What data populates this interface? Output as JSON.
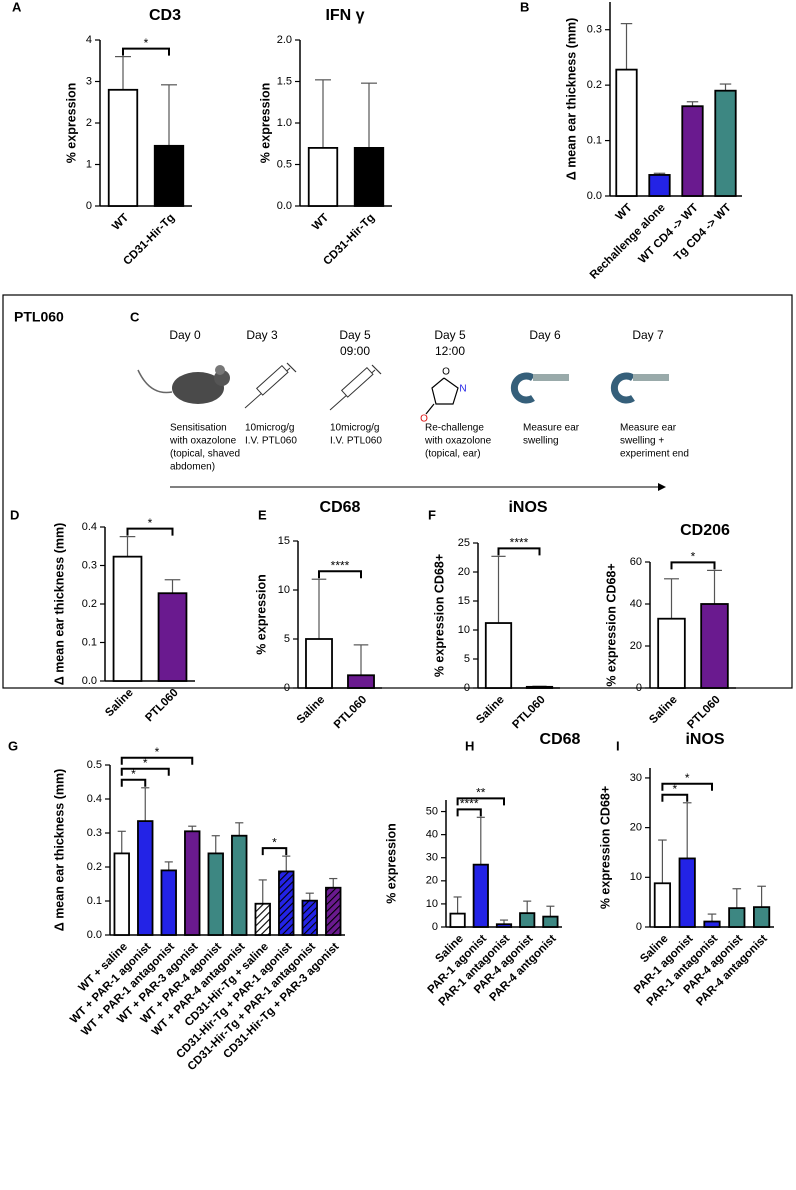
{
  "chart_data": [
    {
      "type": "bar",
      "panel": "A",
      "title": "CD3",
      "ylabel": "% expression",
      "categories": [
        "WT",
        "CD31-Hir-Tg"
      ],
      "values": [
        2.8,
        1.45
      ],
      "errors": [
        0.8,
        1.47
      ],
      "colors": [
        "#ffffff",
        "#000000"
      ],
      "ylim": [
        0,
        4
      ],
      "yticks": [
        0,
        1,
        2,
        3,
        4
      ],
      "significance": [
        {
          "from": 0,
          "to": 1,
          "label": "*"
        }
      ]
    },
    {
      "type": "bar",
      "title": "IFN γ",
      "ylabel": "% expression",
      "categories": [
        "WT",
        "CD31-Hir-Tg"
      ],
      "values": [
        0.7,
        0.7
      ],
      "errors": [
        0.82,
        0.78
      ],
      "colors": [
        "#ffffff",
        "#000000"
      ],
      "ylim": [
        0,
        2
      ],
      "yticks": [
        {
          "value": 0,
          "label": "0.0"
        },
        0.5,
        {
          "value": 1,
          "label": "1.0"
        },
        1.5,
        {
          "value": 2,
          "label": "2.0"
        }
      ]
    },
    {
      "type": "bar",
      "panel": "B",
      "ylabel": "Δ mean ear thickness (mm)",
      "categories": [
        "WT",
        "Rechallenge alone",
        "WT CD4 -> WT",
        "Tg CD4 -> WT"
      ],
      "values": [
        0.228,
        0.038,
        0.162,
        0.19
      ],
      "errors": [
        0.083,
        0.003,
        0.008,
        0.012
      ],
      "colors": [
        "#ffffff",
        "#2323e6",
        "#6a1a8f",
        "#3d8782"
      ],
      "ylim": [
        0,
        0.35
      ],
      "yticks": [
        {
          "value": 0,
          "label": "0.0"
        },
        0.1,
        0.2,
        0.3
      ]
    },
    {
      "type": "bar",
      "panel": "D",
      "ylabel": "Δ mean ear thickness (mm)",
      "categories": [
        "Saline",
        "PTL060"
      ],
      "values": [
        0.323,
        0.228
      ],
      "errors": [
        0.052,
        0.035
      ],
      "colors": [
        "#ffffff",
        "#6a1a8f"
      ],
      "ylim": [
        0,
        0.4
      ],
      "yticks": [
        {
          "value": 0,
          "label": "0.0"
        },
        0.1,
        0.2,
        0.3,
        0.4
      ],
      "significance": [
        {
          "from": 0,
          "to": 1,
          "label": "*"
        }
      ]
    },
    {
      "type": "bar",
      "panel": "E",
      "title": "CD68",
      "ylabel": "% expression",
      "categories": [
        "Saline",
        "PTL060"
      ],
      "values": [
        5.0,
        1.3
      ],
      "errors": [
        6.1,
        3.1
      ],
      "colors": [
        "#ffffff",
        "#6a1a8f"
      ],
      "ylim": [
        0,
        15
      ],
      "yticks": [
        0,
        5,
        10,
        15
      ],
      "significance": [
        {
          "from": 0,
          "to": 1,
          "label": "****"
        }
      ]
    },
    {
      "type": "bar",
      "panel": "F",
      "title": "iNOS",
      "ylabel": "% expression CD68+",
      "categories": [
        "Saline",
        "PTL060"
      ],
      "values": [
        11.2,
        0.2
      ],
      "errors": [
        11.5,
        0.1
      ],
      "colors": [
        "#ffffff",
        "#6a1a8f"
      ],
      "ylim": [
        0,
        25
      ],
      "yticks": [
        0,
        5,
        10,
        15,
        20,
        25
      ],
      "significance": [
        {
          "from": 0,
          "to": 1,
          "label": "****"
        }
      ]
    },
    {
      "type": "bar",
      "title": "CD206",
      "ylabel": "% expression CD68+",
      "categories": [
        "Saline",
        "PTL060"
      ],
      "values": [
        33,
        40
      ],
      "errors": [
        19,
        16
      ],
      "colors": [
        "#ffffff",
        "#6a1a8f"
      ],
      "ylim": [
        0,
        60
      ],
      "yticks": [
        0,
        20,
        40,
        60
      ],
      "significance": [
        {
          "from": 0,
          "to": 1,
          "label": "*"
        }
      ]
    },
    {
      "type": "bar",
      "panel": "G",
      "ylabel": "Δ mean ear thickness (mm)",
      "categories": [
        "WT + saline",
        "WT + PAR-1 agonist",
        "WT + PAR-1 antagonist",
        "WT + PAR-3 agonist",
        "WT + PAR-4 agonist",
        "WT + PAR-4 antagonist",
        "CD31-Hir-Tg + saline",
        "CD31-Hir-Tg + PAR-1 agonist",
        "CD31-Hir-Tg + PAR-1 antagonist",
        "CD31-Hir-Tg + PAR-3 agonist"
      ],
      "values": [
        0.24,
        0.335,
        0.19,
        0.305,
        0.24,
        0.292,
        0.092,
        0.187,
        0.101,
        0.139
      ],
      "errors": [
        0.065,
        0.098,
        0.025,
        0.015,
        0.052,
        0.038,
        0.07,
        0.045,
        0.022,
        0.027
      ],
      "colors": [
        "#ffffff",
        "#2323e6",
        "#2323e6",
        "#6a1a8f",
        "#3d8782",
        "#3d8782",
        "#ffffff",
        "#2323e6",
        "#2323e6",
        "#6a1a8f"
      ],
      "hatched": [
        false,
        false,
        false,
        false,
        false,
        false,
        true,
        true,
        true,
        true
      ],
      "ylim": [
        0,
        0.5
      ],
      "yticks": [
        {
          "value": 0,
          "label": "0.0"
        },
        0.1,
        0.2,
        0.3,
        0.4,
        0.5
      ],
      "significance": [
        {
          "from": 0,
          "to": 1,
          "label": "*"
        },
        {
          "from": 0,
          "to": 2,
          "label": "*"
        },
        {
          "from": 0,
          "to": 3,
          "label": "*"
        },
        {
          "from": 6,
          "to": 7,
          "label": "*"
        }
      ]
    },
    {
      "type": "bar",
      "panel": "H",
      "title": "CD68",
      "ylabel": "% expression",
      "categories": [
        "Saline",
        "PAR-1 agonist",
        "PAR-1 antagonist",
        "PAR-4 agonist",
        "PAR-4 antgonist"
      ],
      "values": [
        5.8,
        27,
        1.2,
        6,
        4.5
      ],
      "errors": [
        7.2,
        20.5,
        1.8,
        5.2,
        4.5
      ],
      "colors": [
        "#ffffff",
        "#2323e6",
        "#2323e6",
        "#3d8782",
        "#3d8782"
      ],
      "ylim": [
        0,
        55
      ],
      "yticks": [
        0,
        10,
        20,
        30,
        40,
        50
      ],
      "significance": [
        {
          "from": 0,
          "to": 1,
          "label": "****"
        },
        {
          "from": 0,
          "to": 2,
          "label": "**"
        }
      ]
    },
    {
      "type": "bar",
      "panel": "I",
      "title": "iNOS",
      "ylabel": "% expression CD68+",
      "categories": [
        "Saline",
        "PAR-1 agonist",
        "PAR-1 antagonist",
        "PAR-4 agonist",
        "PAR-4 antagonist"
      ],
      "values": [
        8.8,
        13.8,
        1.1,
        3.8,
        4.0
      ],
      "errors": [
        8.7,
        11.2,
        1.5,
        3.9,
        4.2
      ],
      "colors": [
        "#ffffff",
        "#2323e6",
        "#2323e6",
        "#3d8782",
        "#3d8782"
      ],
      "ylim": [
        0,
        32
      ],
      "yticks": [
        0,
        10,
        20,
        30
      ],
      "significance": [
        {
          "from": 0,
          "to": 1,
          "label": "*"
        },
        {
          "from": 0,
          "to": 2,
          "label": "*"
        }
      ]
    }
  ],
  "timeline": {
    "box_label": "PTL060",
    "panel": "C",
    "steps": [
      {
        "day": "Day 0",
        "text": [
          "Sensitisation",
          "with oxazolone",
          "(topical, shaved",
          "abdomen)"
        ]
      },
      {
        "day": "Day 3",
        "text": [
          "10microg/g",
          "I.V. PTL060"
        ]
      },
      {
        "day": "Day 5",
        "time": "09:00",
        "text": [
          "10microg/g",
          "I.V. PTL060"
        ]
      },
      {
        "day": "Day 5",
        "time": "12:00",
        "atoms": [
          "O",
          "N",
          "O"
        ],
        "text": [
          "Re-challenge",
          "with oxazolone",
          "(topical, ear)"
        ]
      },
      {
        "day": "Day 6",
        "text": [
          "Measure ear",
          "swelling"
        ]
      },
      {
        "day": "Day 7",
        "text": [
          "Measure ear",
          "swelling +",
          "experiment end"
        ]
      }
    ]
  }
}
